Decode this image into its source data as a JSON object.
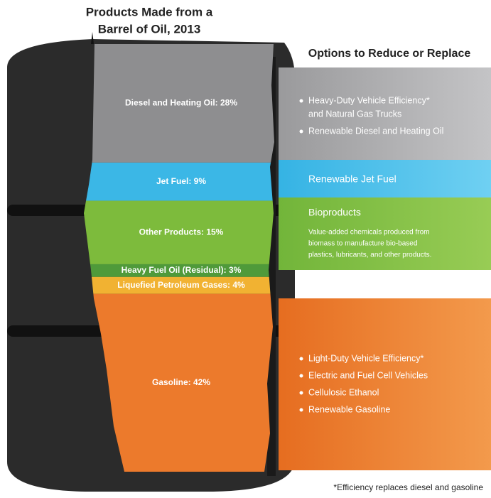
{
  "chart_data": {
    "type": "stacked_bar",
    "title": [
      "Products Made from a",
      "Barrel of Oil, 2013"
    ],
    "segments": [
      {
        "value": 28,
        "label": "Diesel and Heating Oil: 28%",
        "color": "#8e8e90"
      },
      {
        "value": 9,
        "label": "Jet Fuel: 9%",
        "color": "#3bb7e6"
      },
      {
        "value": 15,
        "label": "Other Products: 15%",
        "color": "#7dbb3c"
      },
      {
        "value": 3,
        "label": "Heavy Fuel Oil (Residual): 3%",
        "color": "#4f9a3a"
      },
      {
        "value": 4,
        "label": "Liquefied Petroleum Gases: 4%",
        "color": "#f1b232"
      },
      {
        "value": 42,
        "label": "Gasoline: 42%",
        "color": "#ec7a2c"
      }
    ],
    "options_title": "Options to Reduce or Replace",
    "options": [
      {
        "bullets": [
          "Heavy-Duty Vehicle Efficiency*",
          "and Natural Gas Trucks",
          "Renewable Diesel and Heating Oil"
        ]
      },
      {
        "heading": "Renewable Jet Fuel"
      },
      {
        "heading": "Bioproducts",
        "description": [
          "Value-added chemicals produced from",
          "biomass to manufacture bio-based",
          "plastics, lubricants, and other products."
        ]
      },
      {
        "bullets": [
          "Light-Duty Vehicle Efficiency*",
          "Electric and Fuel Cell Vehicles",
          "Cellulosic Ethanol",
          "Renewable Gasoline"
        ]
      }
    ],
    "footnote": "*Efficiency replaces diesel and gasoline"
  }
}
